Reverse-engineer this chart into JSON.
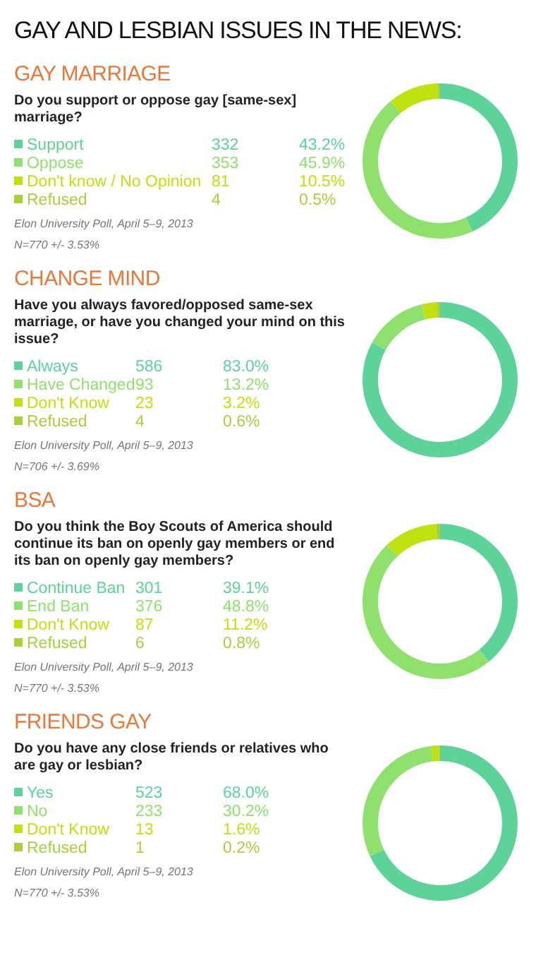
{
  "chart_data": [
    {
      "type": "donut",
      "title": "GAY AND LESBIAN ISSUES IN THE NEWS:",
      "subtitle": "GAY MARRIAGE",
      "legend": "left",
      "annotations": [
        "Do you support or oppose gay [same-sex] marriage?",
        "Elon University Poll, April 5–9, 2013",
        "N=770   +/- 3.53%",
        {
          "text": "332",
          "x": "Support"
        },
        {
          "text": "353",
          "x": "Oppose"
        },
        {
          "text": "81",
          "x": "Don't know / No Opinion"
        },
        {
          "text": "4",
          "x": "Refused"
        }
      ],
      "categories": [
        "Support",
        "Oppose",
        "Don't know / No Opinion",
        "Refused"
      ],
      "values": [
        43.2,
        45.9,
        10.5,
        0.5
      ],
      "value_labels": [
        "43.2%",
        "45.9%",
        "10.5%",
        "0.5%"
      ],
      "colors": [
        "#5dd39a",
        "#8fe06c",
        "#c0e010",
        "#a8cf3c"
      ]
    },
    {
      "type": "donut",
      "title": "CHANGE MIND",
      "subtitle": "Have you always favored/opposed same-sex marriage, or have you changed your mind on this issue?",
      "legend": "left",
      "annotations": [
        "Elon University Poll, April 5–9, 2013",
        "N=706   +/- 3.69%",
        {
          "text": "586",
          "x": "Always"
        },
        {
          "text": "93",
          "x": "Have Changed"
        },
        {
          "text": "23",
          "x": "Don't Know"
        },
        {
          "text": "4",
          "x": "Refused"
        }
      ],
      "categories": [
        "Always",
        "Have Changed",
        "Don't Know",
        "Refused"
      ],
      "values": [
        83.0,
        13.2,
        3.2,
        0.6
      ],
      "value_labels": [
        "83.0%",
        "13.2%",
        "3.2%",
        "0.6%"
      ],
      "colors": [
        "#5dd39a",
        "#8fe06c",
        "#c0e010",
        "#a8cf3c"
      ]
    },
    {
      "type": "donut",
      "title": "BSA",
      "subtitle": "Do you think the Boy Scouts of America should continue its ban on openly gay members or end its ban on openly gay members?",
      "legend": "left",
      "annotations": [
        "Elon University Poll, April 5–9, 2013",
        "N=770   +/- 3.53%",
        {
          "text": "301",
          "x": "Continue Ban"
        },
        {
          "text": "376",
          "x": "End Ban"
        },
        {
          "text": "87",
          "x": "Don't Know"
        },
        {
          "text": "6",
          "x": "Refused"
        }
      ],
      "categories": [
        "Continue Ban",
        "End Ban",
        "Don't Know",
        "Refused"
      ],
      "values": [
        39.1,
        48.8,
        11.2,
        0.8
      ],
      "value_labels": [
        "39.1%",
        "48.8%",
        "11.2%",
        "0.8%"
      ],
      "colors": [
        "#5dd39a",
        "#8fe06c",
        "#c0e010",
        "#a8cf3c"
      ]
    },
    {
      "type": "donut",
      "title": "FRIENDS GAY",
      "subtitle": "Do you have any close friends or relatives who are gay or lesbian?",
      "legend": "left",
      "annotations": [
        "Elon University Poll, April 5–9, 2013",
        "N=770   +/- 3.53%",
        {
          "text": "523",
          "x": "Yes"
        },
        {
          "text": "233",
          "x": "No"
        },
        {
          "text": "13",
          "x": "Don't Know"
        },
        {
          "text": "1",
          "x": "Refused"
        }
      ],
      "categories": [
        "Yes",
        "No",
        "Don't Know",
        "Refused"
      ],
      "values": [
        68.0,
        30.2,
        1.6,
        0.2
      ],
      "value_labels": [
        "68.0%",
        "30.2%",
        "1.6%",
        "0.2%"
      ],
      "colors": [
        "#5dd39a",
        "#8fe06c",
        "#c0e010",
        "#a8cf3c"
      ]
    }
  ]
}
